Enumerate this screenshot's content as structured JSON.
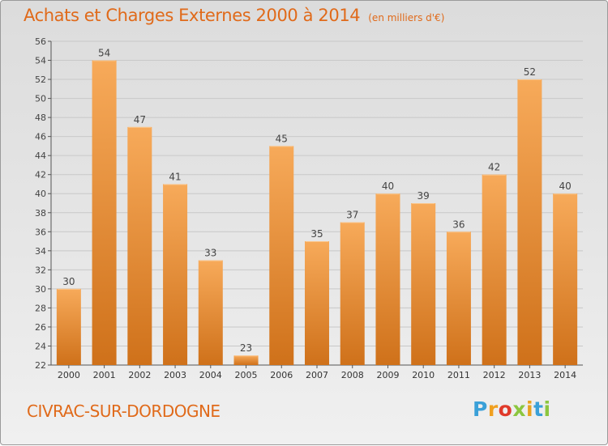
{
  "header": {
    "title": "Achats et Charges Externes 2000 à 2014",
    "unit": "(en milliers d'€)"
  },
  "footer": {
    "commune": "CIVRAC-SUR-DORDOGNE",
    "logo": "Proxiti"
  },
  "colors": {
    "bar_light": "#f5a552",
    "bar_dark": "#d0731c",
    "title": "#e06a1a"
  },
  "chart_data": {
    "type": "bar",
    "title": "Achats et Charges Externes 2000 à 2014",
    "subtitle": "(en milliers d'€)",
    "xlabel": "",
    "ylabel": "",
    "categories": [
      "2000",
      "2001",
      "2002",
      "2003",
      "2004",
      "2005",
      "2006",
      "2007",
      "2008",
      "2009",
      "2010",
      "2011",
      "2012",
      "2013",
      "2014"
    ],
    "values": [
      30,
      54,
      47,
      41,
      33,
      23,
      45,
      35,
      37,
      40,
      39,
      36,
      42,
      52,
      40
    ],
    "ylim": [
      22,
      56
    ],
    "yticks": [
      22,
      24,
      26,
      28,
      30,
      32,
      34,
      36,
      38,
      40,
      42,
      44,
      46,
      48,
      50,
      52,
      54,
      56
    ],
    "grid": true,
    "legend": "none"
  }
}
